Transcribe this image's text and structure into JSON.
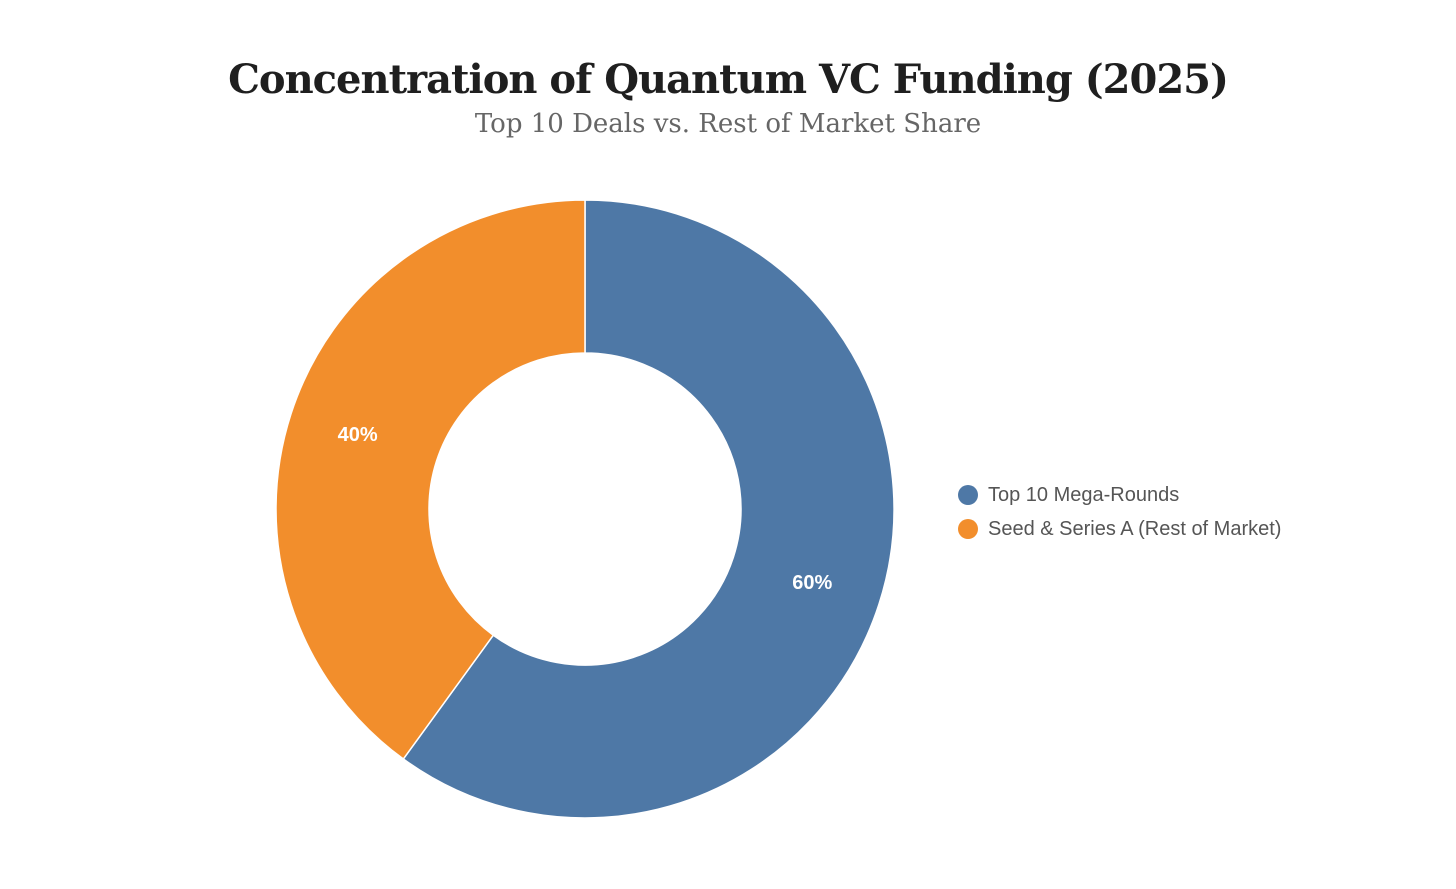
{
  "chart": {
    "title": "Concentration of Quantum VC Funding (2025)",
    "subtitle": "Top 10 Deals vs. Rest of Market Share"
  },
  "chart_data": {
    "type": "pie",
    "variant": "donut",
    "title": "Concentration of Quantum VC Funding (2025)",
    "subtitle": "Top 10 Deals vs. Rest of Market Share",
    "legend_position": "right",
    "categories": [
      "Top 10 Mega-Rounds",
      "Seed & Series A (Rest of Market)"
    ],
    "values": [
      60,
      40
    ],
    "labels": [
      "60%",
      "40%"
    ],
    "colors": [
      "#4e78a6",
      "#f28e2c"
    ]
  }
}
